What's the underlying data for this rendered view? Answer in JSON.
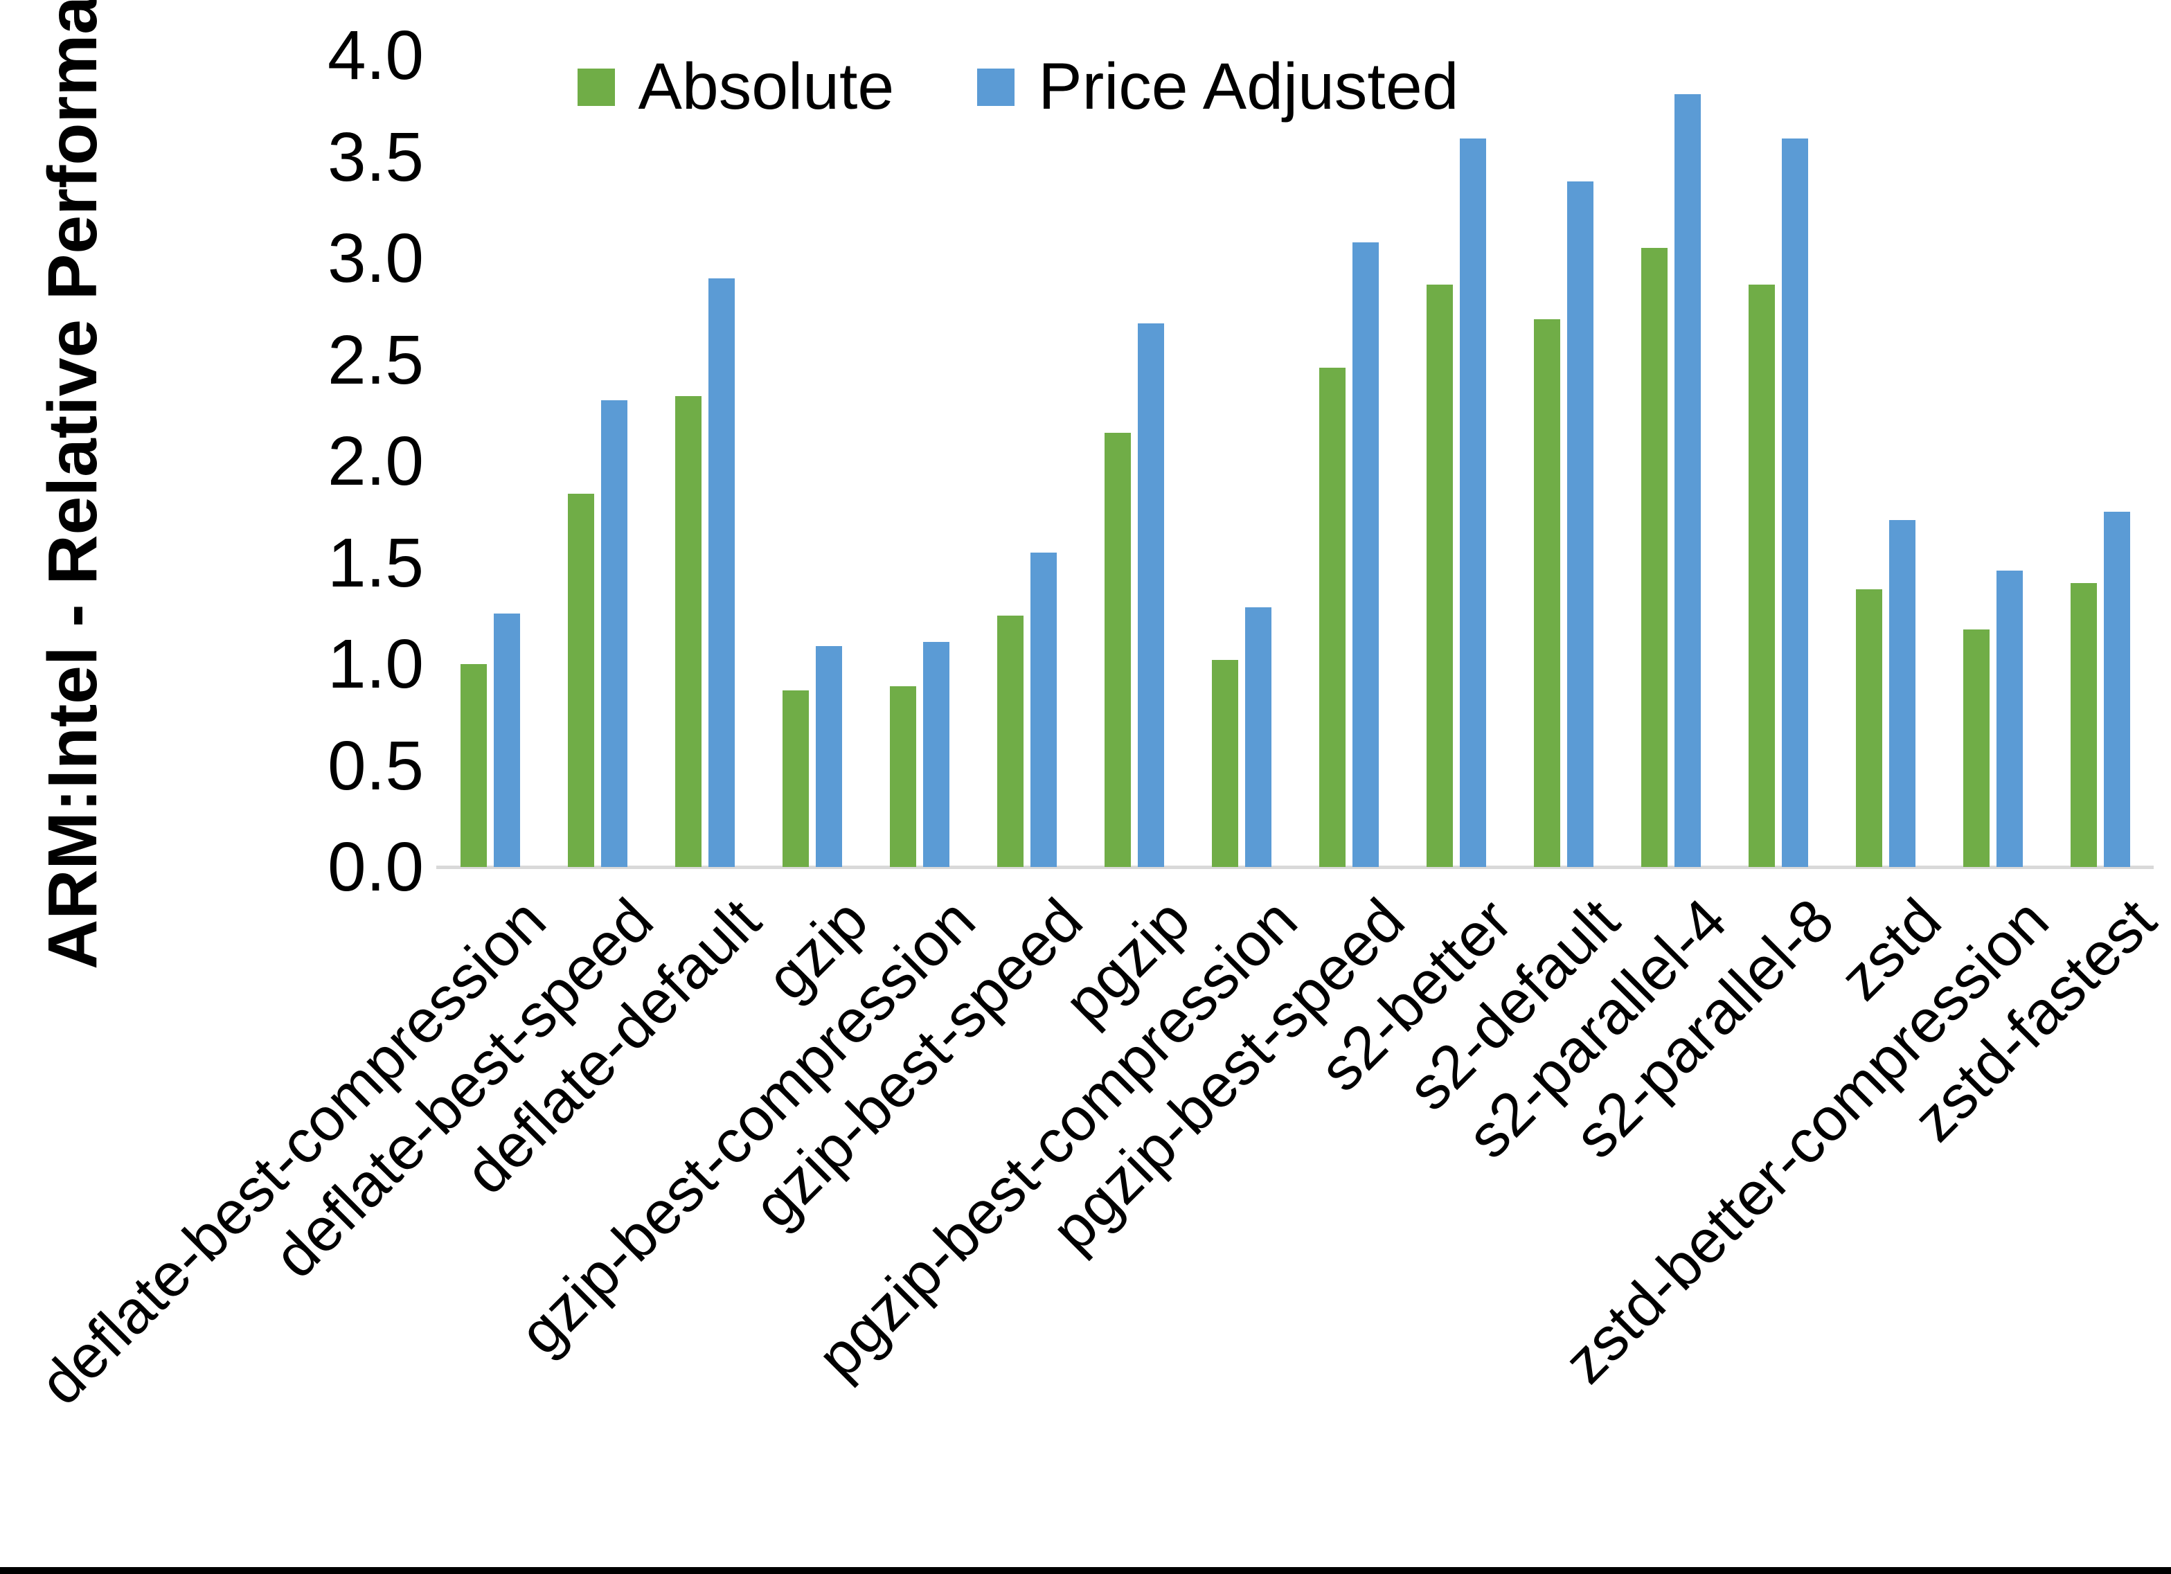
{
  "chart_data": {
    "type": "bar",
    "title": "",
    "xlabel": "",
    "ylabel": "ARM:Intel - Relative Performance",
    "ylim": [
      0.0,
      4.0
    ],
    "yticks": [
      "0.0",
      "0.5",
      "1.0",
      "1.5",
      "2.0",
      "2.5",
      "3.0",
      "3.5",
      "4.0"
    ],
    "grid": false,
    "legend_position": "top-center",
    "axis_line_color": "#d9d9d9",
    "categories": [
      "deflate-best-compression",
      "deflate-best-speed",
      "deflate-default",
      "gzip",
      "gzip-best-compression",
      "gzip-best-speed",
      "pgzip",
      "pgzip-best-compression",
      "pgzip-best-speed",
      "s2-better",
      "s2-default",
      "s2-parallel-4",
      "s2-parallel-8",
      "zstd",
      "zstd-better-compression",
      "zstd-fastest"
    ],
    "series": [
      {
        "name": "Absolute",
        "color": "#70AD47",
        "values": [
          1.0,
          1.84,
          2.32,
          0.87,
          0.89,
          1.24,
          2.14,
          1.02,
          2.46,
          2.87,
          2.7,
          3.05,
          2.87,
          1.37,
          1.17,
          1.4
        ]
      },
      {
        "name": "Price Adjusted",
        "color": "#5B9BD5",
        "values": [
          1.25,
          2.3,
          2.9,
          1.09,
          1.11,
          1.55,
          2.68,
          1.28,
          3.08,
          3.59,
          3.38,
          3.81,
          3.59,
          1.71,
          1.46,
          1.75
        ]
      }
    ]
  }
}
